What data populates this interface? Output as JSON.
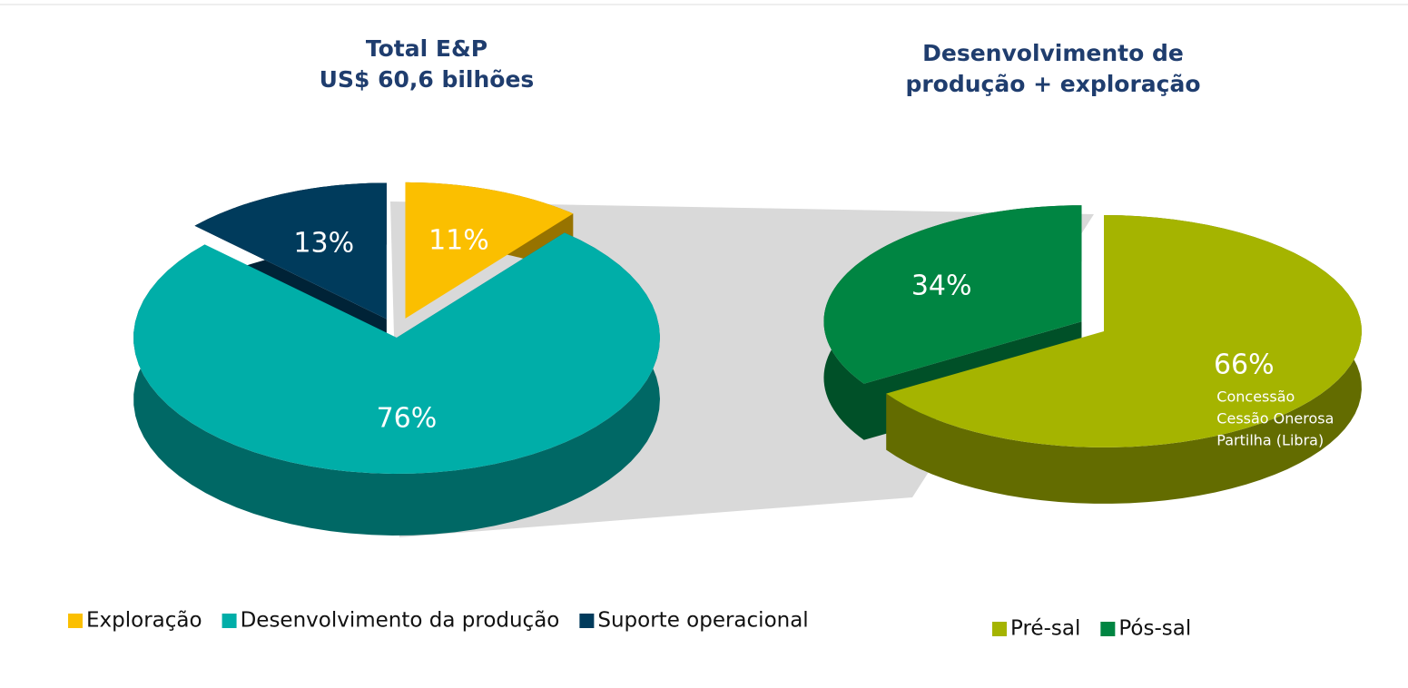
{
  "chart_data": [
    {
      "type": "pie",
      "title": [
        "Total E&P",
        "US$ 60,6 bilhões"
      ],
      "categories": [
        "Exploração",
        "Desenvolvimento da produção",
        "Suporte operacional"
      ],
      "values": [
        11,
        76,
        13
      ],
      "value_labels": [
        "11%",
        "76%",
        "13%"
      ],
      "colors": [
        "#fbbf00",
        "#00aea8",
        "#003b5c"
      ],
      "legend": "bottom"
    },
    {
      "type": "pie",
      "title": [
        "Desenvolvimento de",
        "produção + exploração"
      ],
      "categories": [
        "Pré-sal",
        "Pós-sal"
      ],
      "values": [
        66,
        34
      ],
      "value_labels": [
        "66%",
        "34%"
      ],
      "colors": [
        "#a5b400",
        "#008542"
      ],
      "annotations": [
        "Concessão",
        "Cessão Onerosa",
        "Partilha (Libra)"
      ],
      "legend": "bottom"
    }
  ]
}
